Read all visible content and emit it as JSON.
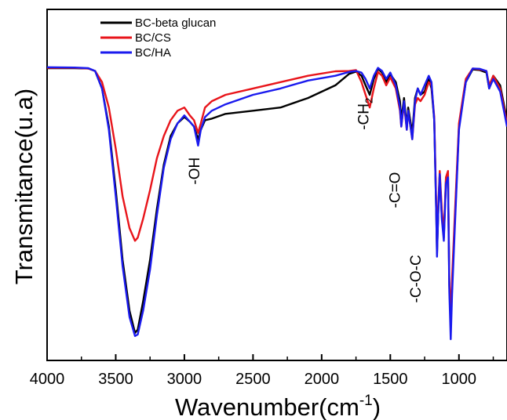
{
  "chart_data": {
    "type": "line",
    "xlabel": "Wavenumber(cm",
    "xlabel_sup": "-1",
    "xlabel_close": ")",
    "ylabel": "Transmitance(u.a)",
    "xlim": [
      4000,
      650
    ],
    "x_reversed": true,
    "ylim": [
      0,
      100
    ],
    "y_ticks_shown": false,
    "grid": false,
    "legend": {
      "placement": "top-left"
    },
    "x_ticks": [
      {
        "value": 4000,
        "label": "4000"
      },
      {
        "value": 3500,
        "label": "3500"
      },
      {
        "value": 3000,
        "label": "3000"
      },
      {
        "value": 2500,
        "label": "2500"
      },
      {
        "value": 2000,
        "label": "2000"
      },
      {
        "value": 1500,
        "label": "1500"
      },
      {
        "value": 1000,
        "label": "1000"
      }
    ],
    "series": [
      {
        "name": "BC-beta glucan",
        "color": "#000000",
        "points": [
          [
            4000,
            88.4
          ],
          [
            3800,
            88.4
          ],
          [
            3700,
            88.3
          ],
          [
            3650,
            87.5
          ],
          [
            3600,
            82
          ],
          [
            3550,
            70
          ],
          [
            3500,
            50
          ],
          [
            3450,
            28
          ],
          [
            3400,
            12
          ],
          [
            3360,
            5
          ],
          [
            3340,
            6
          ],
          [
            3300,
            15
          ],
          [
            3250,
            28
          ],
          [
            3200,
            44
          ],
          [
            3150,
            58
          ],
          [
            3100,
            67
          ],
          [
            3050,
            71
          ],
          [
            3000,
            73
          ],
          [
            2960,
            71.5
          ],
          [
            2930,
            70
          ],
          [
            2900,
            66
          ],
          [
            2880,
            69
          ],
          [
            2850,
            72
          ],
          [
            2800,
            72.5
          ],
          [
            2700,
            74
          ],
          [
            2500,
            75
          ],
          [
            2300,
            76
          ],
          [
            2100,
            79
          ],
          [
            1900,
            83
          ],
          [
            1800,
            86.6
          ],
          [
            1750,
            87.3
          ],
          [
            1710,
            86
          ],
          [
            1680,
            83
          ],
          [
            1650,
            80
          ],
          [
            1620,
            85
          ],
          [
            1590,
            88.2
          ],
          [
            1560,
            87
          ],
          [
            1530,
            84
          ],
          [
            1500,
            86.5
          ],
          [
            1460,
            84
          ],
          [
            1430,
            78
          ],
          [
            1420,
            72
          ],
          [
            1400,
            79
          ],
          [
            1380,
            70
          ],
          [
            1370,
            76
          ],
          [
            1340,
            68
          ],
          [
            1320,
            79
          ],
          [
            1300,
            82
          ],
          [
            1280,
            80
          ],
          [
            1250,
            81
          ],
          [
            1220,
            85
          ],
          [
            1200,
            82
          ],
          [
            1180,
            72
          ],
          [
            1165,
            42
          ],
          [
            1160,
            30
          ],
          [
            1150,
            44
          ],
          [
            1140,
            55
          ],
          [
            1125,
            42
          ],
          [
            1110,
            35
          ],
          [
            1095,
            53
          ],
          [
            1080,
            55
          ],
          [
            1070,
            20
          ],
          [
            1060,
            8
          ],
          [
            1050,
            20
          ],
          [
            1030,
            40
          ],
          [
            1000,
            70
          ],
          [
            950,
            84
          ],
          [
            900,
            88
          ],
          [
            850,
            87.8
          ],
          [
            800,
            87
          ],
          [
            780,
            82
          ],
          [
            750,
            86
          ],
          [
            700,
            83
          ],
          [
            650,
            72
          ]
        ]
      },
      {
        "name": "BC/CS",
        "color": "#e8141a",
        "points": [
          [
            4000,
            88.5
          ],
          [
            3800,
            88.5
          ],
          [
            3700,
            88.3
          ],
          [
            3650,
            87.5
          ],
          [
            3600,
            84
          ],
          [
            3550,
            76
          ],
          [
            3500,
            63
          ],
          [
            3450,
            48
          ],
          [
            3400,
            38
          ],
          [
            3360,
            34
          ],
          [
            3340,
            35
          ],
          [
            3300,
            41
          ],
          [
            3250,
            50
          ],
          [
            3200,
            60
          ],
          [
            3150,
            67
          ],
          [
            3100,
            72
          ],
          [
            3050,
            75
          ],
          [
            3000,
            76
          ],
          [
            2960,
            73.5
          ],
          [
            2930,
            72
          ],
          [
            2900,
            68
          ],
          [
            2880,
            71
          ],
          [
            2850,
            76
          ],
          [
            2800,
            78
          ],
          [
            2700,
            80
          ],
          [
            2500,
            82
          ],
          [
            2300,
            84
          ],
          [
            2100,
            86
          ],
          [
            1900,
            87.4
          ],
          [
            1800,
            87.5
          ],
          [
            1750,
            87.8
          ],
          [
            1710,
            84
          ],
          [
            1680,
            80
          ],
          [
            1650,
            76
          ],
          [
            1620,
            82
          ],
          [
            1590,
            87.2
          ],
          [
            1560,
            86
          ],
          [
            1530,
            83
          ],
          [
            1500,
            85.5
          ],
          [
            1460,
            82
          ],
          [
            1430,
            75
          ],
          [
            1420,
            70
          ],
          [
            1400,
            77
          ],
          [
            1380,
            69
          ],
          [
            1370,
            75
          ],
          [
            1340,
            66
          ],
          [
            1320,
            77
          ],
          [
            1300,
            79
          ],
          [
            1280,
            78
          ],
          [
            1250,
            80
          ],
          [
            1220,
            84
          ],
          [
            1200,
            83
          ],
          [
            1180,
            73
          ],
          [
            1165,
            45
          ],
          [
            1160,
            32
          ],
          [
            1150,
            46
          ],
          [
            1140,
            56
          ],
          [
            1125,
            44
          ],
          [
            1110,
            36
          ],
          [
            1095,
            54
          ],
          [
            1080,
            56
          ],
          [
            1070,
            22
          ],
          [
            1060,
            10
          ],
          [
            1050,
            22
          ],
          [
            1030,
            42
          ],
          [
            1000,
            71
          ],
          [
            950,
            85
          ],
          [
            900,
            88.3
          ],
          [
            850,
            88
          ],
          [
            800,
            87.5
          ],
          [
            780,
            83
          ],
          [
            750,
            86
          ],
          [
            700,
            82
          ],
          [
            650,
            71
          ]
        ]
      },
      {
        "name": "BC/HA",
        "color": "#1a1aee",
        "points": [
          [
            4000,
            88.7
          ],
          [
            3800,
            88.6
          ],
          [
            3700,
            88.4
          ],
          [
            3650,
            87.5
          ],
          [
            3600,
            82
          ],
          [
            3550,
            69
          ],
          [
            3500,
            48
          ],
          [
            3450,
            26
          ],
          [
            3400,
            10
          ],
          [
            3360,
            4
          ],
          [
            3340,
            4.5
          ],
          [
            3300,
            12
          ],
          [
            3250,
            25
          ],
          [
            3200,
            42
          ],
          [
            3150,
            57
          ],
          [
            3100,
            66
          ],
          [
            3050,
            71
          ],
          [
            3000,
            73.5
          ],
          [
            2960,
            71.5
          ],
          [
            2930,
            70
          ],
          [
            2900,
            64
          ],
          [
            2880,
            69
          ],
          [
            2850,
            73
          ],
          [
            2800,
            75
          ],
          [
            2700,
            77
          ],
          [
            2500,
            80
          ],
          [
            2300,
            82
          ],
          [
            2100,
            84.5
          ],
          [
            1900,
            86
          ],
          [
            1800,
            87.2
          ],
          [
            1750,
            87.5
          ],
          [
            1710,
            87
          ],
          [
            1680,
            85
          ],
          [
            1650,
            82
          ],
          [
            1620,
            86
          ],
          [
            1590,
            88.5
          ],
          [
            1560,
            87.5
          ],
          [
            1530,
            85
          ],
          [
            1500,
            87
          ],
          [
            1460,
            83
          ],
          [
            1430,
            76
          ],
          [
            1420,
            70
          ],
          [
            1400,
            78
          ],
          [
            1380,
            69
          ],
          [
            1370,
            75
          ],
          [
            1340,
            66
          ],
          [
            1320,
            78
          ],
          [
            1300,
            82
          ],
          [
            1280,
            80
          ],
          [
            1250,
            83
          ],
          [
            1220,
            86
          ],
          [
            1200,
            84
          ],
          [
            1180,
            72
          ],
          [
            1165,
            42
          ],
          [
            1160,
            29
          ],
          [
            1150,
            44
          ],
          [
            1140,
            55
          ],
          [
            1125,
            41
          ],
          [
            1110,
            34
          ],
          [
            1095,
            52
          ],
          [
            1080,
            54
          ],
          [
            1070,
            18
          ],
          [
            1060,
            3
          ],
          [
            1050,
            17
          ],
          [
            1030,
            38
          ],
          [
            1000,
            69
          ],
          [
            950,
            84
          ],
          [
            900,
            88.3
          ],
          [
            850,
            88.2
          ],
          [
            800,
            87.5
          ],
          [
            780,
            82
          ],
          [
            750,
            85
          ],
          [
            700,
            81
          ],
          [
            650,
            70
          ]
        ]
      }
    ],
    "annotations": [
      {
        "text": "-OH",
        "x": 2890,
        "y": 56,
        "rotate": -90
      },
      {
        "text": "-CH",
        "sub": "2",
        "x": 1660,
        "y": 74,
        "rotate": -90
      },
      {
        "text": "-C=O",
        "x": 1430,
        "y": 50,
        "rotate": -90
      },
      {
        "text": "-C-O-C",
        "x": 1280,
        "y": 22,
        "rotate": -90
      }
    ]
  }
}
